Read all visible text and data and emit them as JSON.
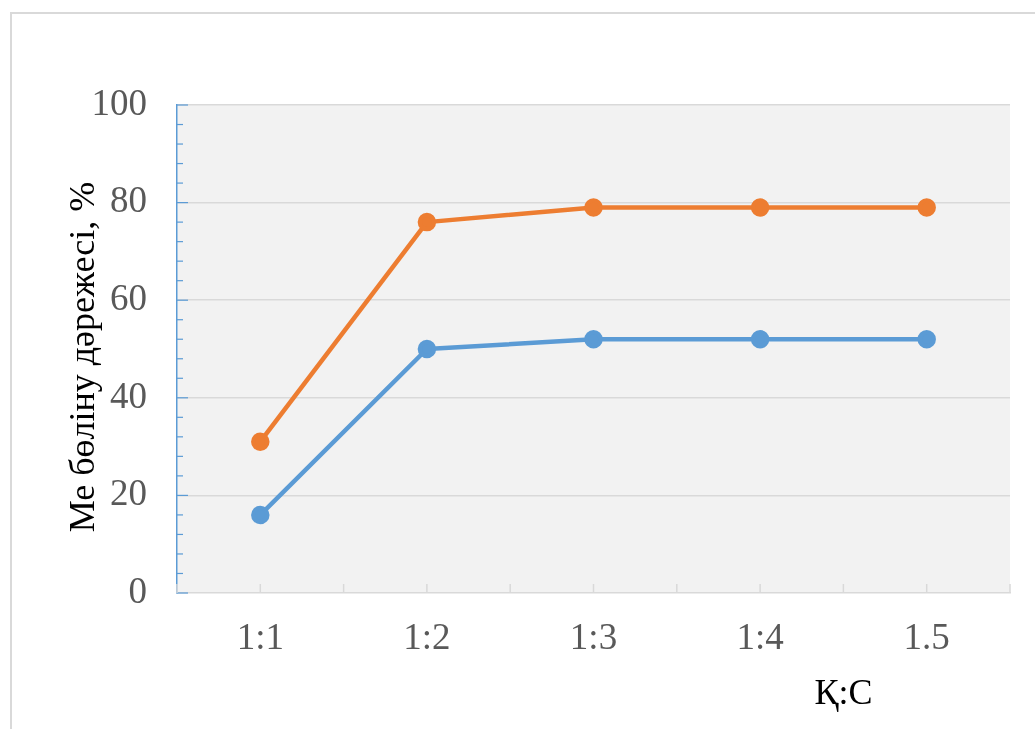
{
  "chart_data": {
    "type": "line",
    "xlabel": "Қ:С",
    "ylabel": "Ме бөліну дәрежесі, %",
    "categories": [
      "1:1",
      "1:2",
      "1:3",
      "1:4",
      "1.5"
    ],
    "series": [
      {
        "color": "#5b9bd5",
        "values": [
          16,
          50,
          52,
          52,
          52
        ]
      },
      {
        "color": "#ed7d31",
        "values": [
          31,
          76,
          79,
          79,
          79
        ]
      }
    ],
    "ylim": [
      0,
      100
    ],
    "yticks": [
      0,
      {
        "value": 4,
        "label": null
      },
      {
        "value": 8,
        "label": null
      },
      {
        "value": 12,
        "label": null
      },
      {
        "value": 16,
        "label": null
      },
      20,
      {
        "value": 24,
        "label": null
      },
      {
        "value": 28,
        "label": null
      },
      {
        "value": 32,
        "label": null
      },
      {
        "value": 36,
        "label": null
      },
      40,
      {
        "value": 44,
        "label": null
      },
      {
        "value": 48,
        "label": null
      },
      {
        "value": 52,
        "label": null
      },
      {
        "value": 56,
        "label": null
      },
      60,
      {
        "value": 64,
        "label": null
      },
      {
        "value": 68,
        "label": null
      },
      {
        "value": 72,
        "label": null
      },
      {
        "value": 76,
        "label": null
      },
      80,
      {
        "value": 84,
        "label": null
      },
      {
        "value": 88,
        "label": null
      },
      {
        "value": 92,
        "label": null
      },
      {
        "value": 96,
        "label": null
      },
      100
    ],
    "grid": "y",
    "legend": false,
    "marker": "circle",
    "line_style": "solid"
  }
}
